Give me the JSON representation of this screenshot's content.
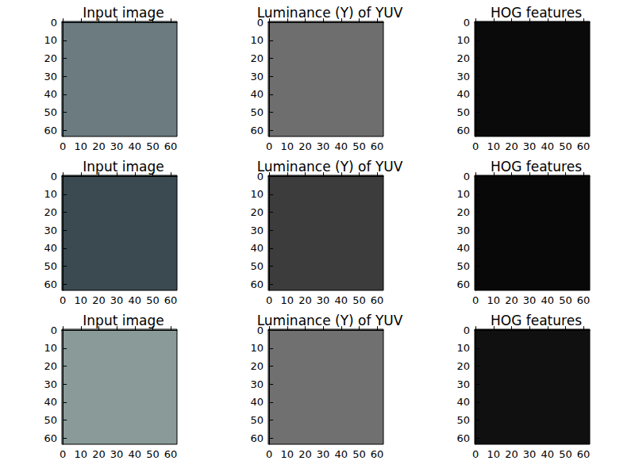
{
  "chart_data": [
    {
      "type": "image",
      "title": "Input image",
      "color": "#6b7b80",
      "xlim": [
        -0.5,
        63.5
      ],
      "ylim": [
        63.5,
        -0.5
      ],
      "xticks": [
        0,
        10,
        20,
        30,
        40,
        50,
        60
      ],
      "yticks": [
        0,
        10,
        20,
        30,
        40,
        50,
        60
      ]
    },
    {
      "type": "image",
      "title": "Luminance (Y) of YUV",
      "color": "#6e6e6e",
      "xlim": [
        -0.5,
        63.5
      ],
      "ylim": [
        63.5,
        -0.5
      ],
      "xticks": [
        0,
        10,
        20,
        30,
        40,
        50,
        60
      ],
      "yticks": [
        0,
        10,
        20,
        30,
        40,
        50,
        60
      ]
    },
    {
      "type": "image",
      "title": "HOG features",
      "color": "#0a0a0a",
      "xlim": [
        -0.5,
        63.5
      ],
      "ylim": [
        63.5,
        -0.5
      ],
      "xticks": [
        0,
        10,
        20,
        30,
        40,
        50,
        60
      ],
      "yticks": [
        0,
        10,
        20,
        30,
        40,
        50,
        60
      ]
    },
    {
      "type": "image",
      "title": "Input image",
      "color": "#3a4a50",
      "xlim": [
        -0.5,
        63.5
      ],
      "ylim": [
        63.5,
        -0.5
      ],
      "xticks": [
        0,
        10,
        20,
        30,
        40,
        50,
        60
      ],
      "yticks": [
        0,
        10,
        20,
        30,
        40,
        50,
        60
      ]
    },
    {
      "type": "image",
      "title": "Luminance (Y) of YUV",
      "color": "#3c3c3c",
      "xlim": [
        -0.5,
        63.5
      ],
      "ylim": [
        63.5,
        -0.5
      ],
      "xticks": [
        0,
        10,
        20,
        30,
        40,
        50,
        60
      ],
      "yticks": [
        0,
        10,
        20,
        30,
        40,
        50,
        60
      ]
    },
    {
      "type": "image",
      "title": "HOG features",
      "color": "#080808",
      "xlim": [
        -0.5,
        63.5
      ],
      "ylim": [
        63.5,
        -0.5
      ],
      "xticks": [
        0,
        10,
        20,
        30,
        40,
        50,
        60
      ],
      "yticks": [
        0,
        10,
        20,
        30,
        40,
        50,
        60
      ]
    },
    {
      "type": "image",
      "title": "Input image",
      "color": "#8a9a98",
      "xlim": [
        -0.5,
        63.5
      ],
      "ylim": [
        63.5,
        -0.5
      ],
      "xticks": [
        0,
        10,
        20,
        30,
        40,
        50,
        60
      ],
      "yticks": [
        0,
        10,
        20,
        30,
        40,
        50,
        60
      ]
    },
    {
      "type": "image",
      "title": "Luminance (Y) of YUV",
      "color": "#707070",
      "xlim": [
        -0.5,
        63.5
      ],
      "ylim": [
        63.5,
        -0.5
      ],
      "xticks": [
        0,
        10,
        20,
        30,
        40,
        50,
        60
      ],
      "yticks": [
        0,
        10,
        20,
        30,
        40,
        50,
        60
      ]
    },
    {
      "type": "image",
      "title": "HOG features",
      "color": "#101010",
      "xlim": [
        -0.5,
        63.5
      ],
      "ylim": [
        63.5,
        -0.5
      ],
      "xticks": [
        0,
        10,
        20,
        30,
        40,
        50,
        60
      ],
      "yticks": [
        0,
        10,
        20,
        30,
        40,
        50,
        60
      ]
    }
  ]
}
